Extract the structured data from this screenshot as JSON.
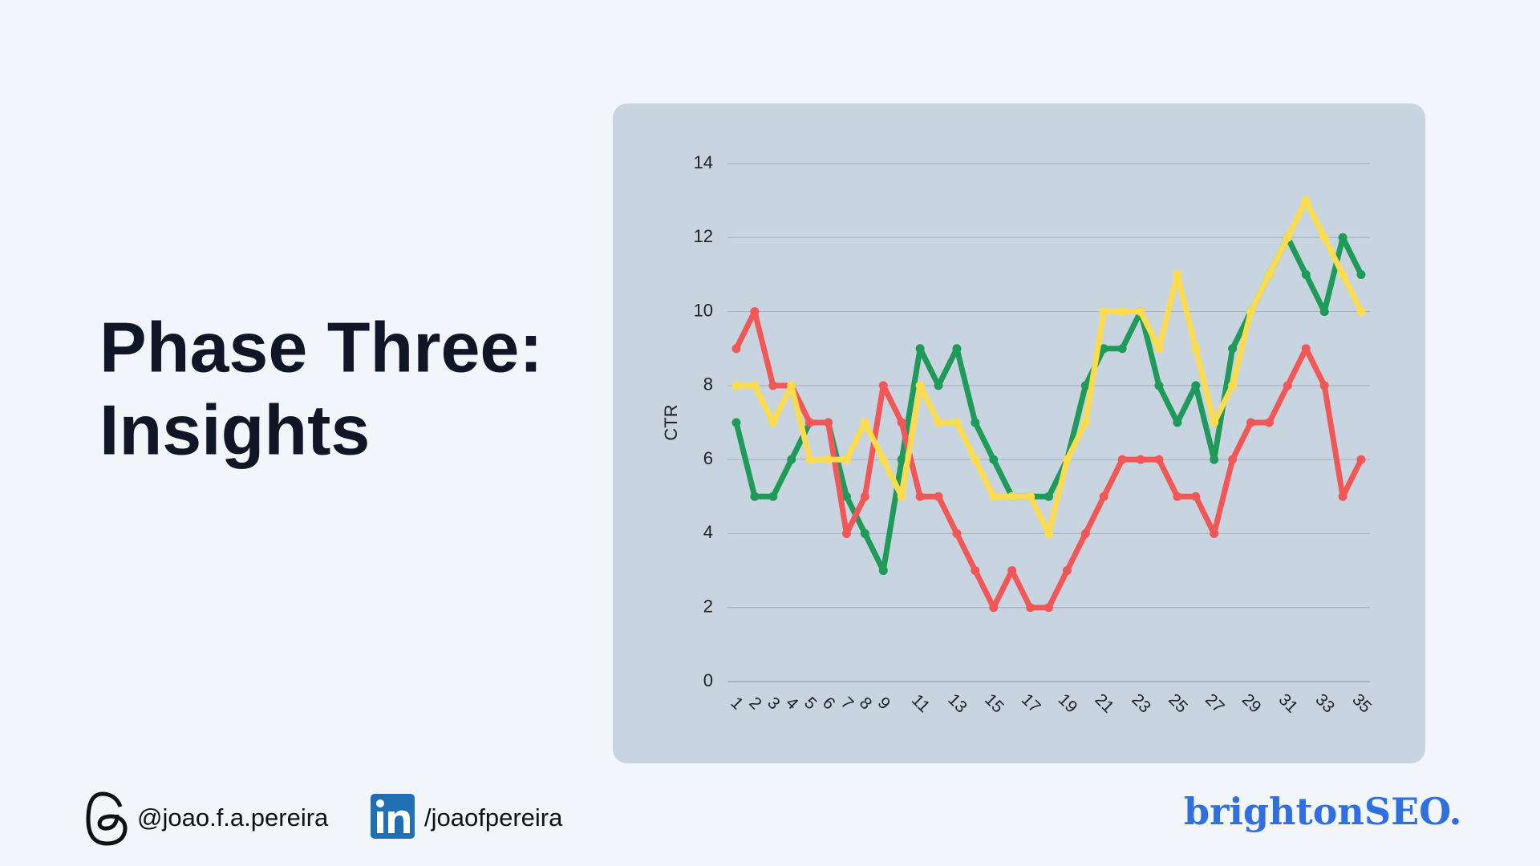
{
  "slide": {
    "title": [
      "Phase Three:",
      "Insights"
    ],
    "threads_handle": "@joao.f.a.pereira",
    "linkedin_handle": "/joaofpereira",
    "brand": "brightonSEO."
  },
  "chart_data": {
    "type": "line",
    "y_label": "CTR",
    "categories": [
      "1",
      "2",
      "3",
      "4",
      "5",
      "6",
      "7",
      "8",
      "9",
      null,
      "11",
      null,
      "13",
      null,
      "15",
      null,
      "17",
      null,
      "19",
      null,
      "21",
      null,
      "23",
      null,
      "25",
      null,
      "27",
      null,
      "29",
      null,
      "31",
      null,
      "33",
      null,
      "35"
    ],
    "series": [
      {
        "color": "#1e9b58",
        "values": [
          7,
          5,
          5,
          6,
          7,
          7,
          5,
          4,
          3,
          6,
          9,
          8,
          9,
          7,
          6,
          5,
          5,
          5,
          6,
          8,
          9,
          9,
          10,
          8,
          7,
          8,
          6,
          9,
          10,
          11,
          12,
          11,
          10,
          12,
          11
        ]
      },
      {
        "color": "#f25757",
        "values": [
          9,
          10,
          8,
          8,
          7,
          7,
          4,
          5,
          8,
          7,
          5,
          5,
          4,
          3,
          2,
          3,
          2,
          2,
          3,
          4,
          5,
          6,
          6,
          6,
          5,
          5,
          4,
          6,
          7,
          7,
          8,
          9,
          8,
          5,
          6
        ]
      },
      {
        "color": "#fcdc4d",
        "values": [
          8,
          8,
          7,
          8,
          6,
          6,
          6,
          7,
          6,
          5,
          8,
          7,
          7,
          6,
          5,
          5,
          5,
          4,
          6,
          7,
          10,
          10,
          10,
          9,
          11,
          9,
          7,
          8,
          10,
          11,
          12,
          13,
          12,
          11,
          10
        ]
      }
    ],
    "ylim": [
      0,
      14
    ],
    "yticks": [
      0,
      2,
      4,
      6,
      8,
      10,
      12,
      14
    ],
    "grid": true
  }
}
